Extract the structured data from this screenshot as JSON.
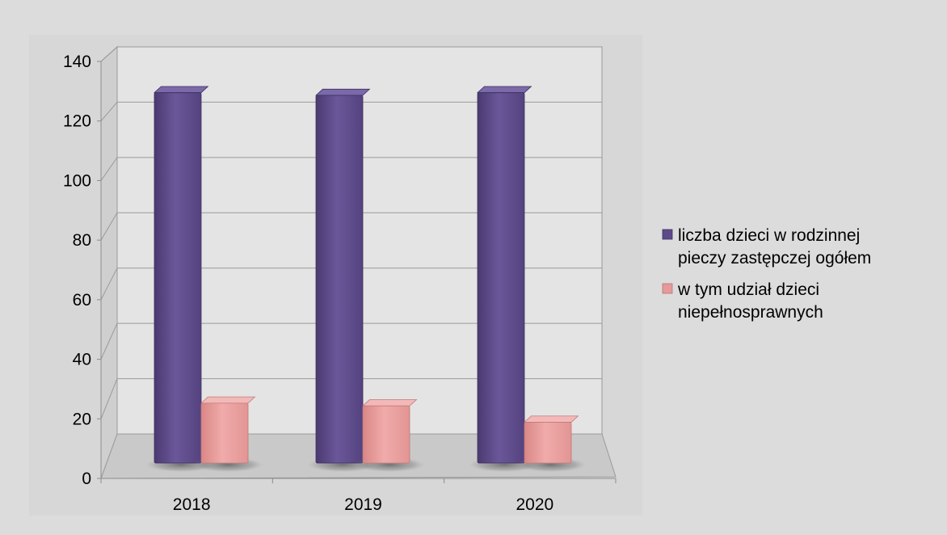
{
  "chart_data": {
    "type": "bar",
    "title": "",
    "xlabel": "",
    "ylabel": "",
    "categories": [
      "2018",
      "2019",
      "2020"
    ],
    "series": [
      {
        "name": "liczba dzieci w rodzinnej pieczy zastępczej ogółem",
        "values": [
          136,
          135,
          136
        ]
      },
      {
        "name": "w tym udział dzieci niepełnosprawnych",
        "values": [
          22,
          21,
          15
        ]
      }
    ],
    "ylim": [
      0,
      140
    ],
    "yticks": [
      "0",
      "20",
      "40",
      "60",
      "80",
      "100",
      "120",
      "140"
    ],
    "grid": true,
    "legend_position": "right",
    "colors": {
      "series1": "#5e4a8b",
      "series2": "#e59a99",
      "plot_area": "#e2e2e2",
      "page_background": "#dcdcdc",
      "chart_background": "#d6d6d6"
    }
  },
  "legend": {
    "items": [
      {
        "lines": [
          "liczba dzieci w rodzinnej",
          "pieczy zastępczej ogółem"
        ]
      },
      {
        "lines": [
          "w tym udział dzieci",
          "niepełnosprawnych"
        ]
      }
    ]
  }
}
